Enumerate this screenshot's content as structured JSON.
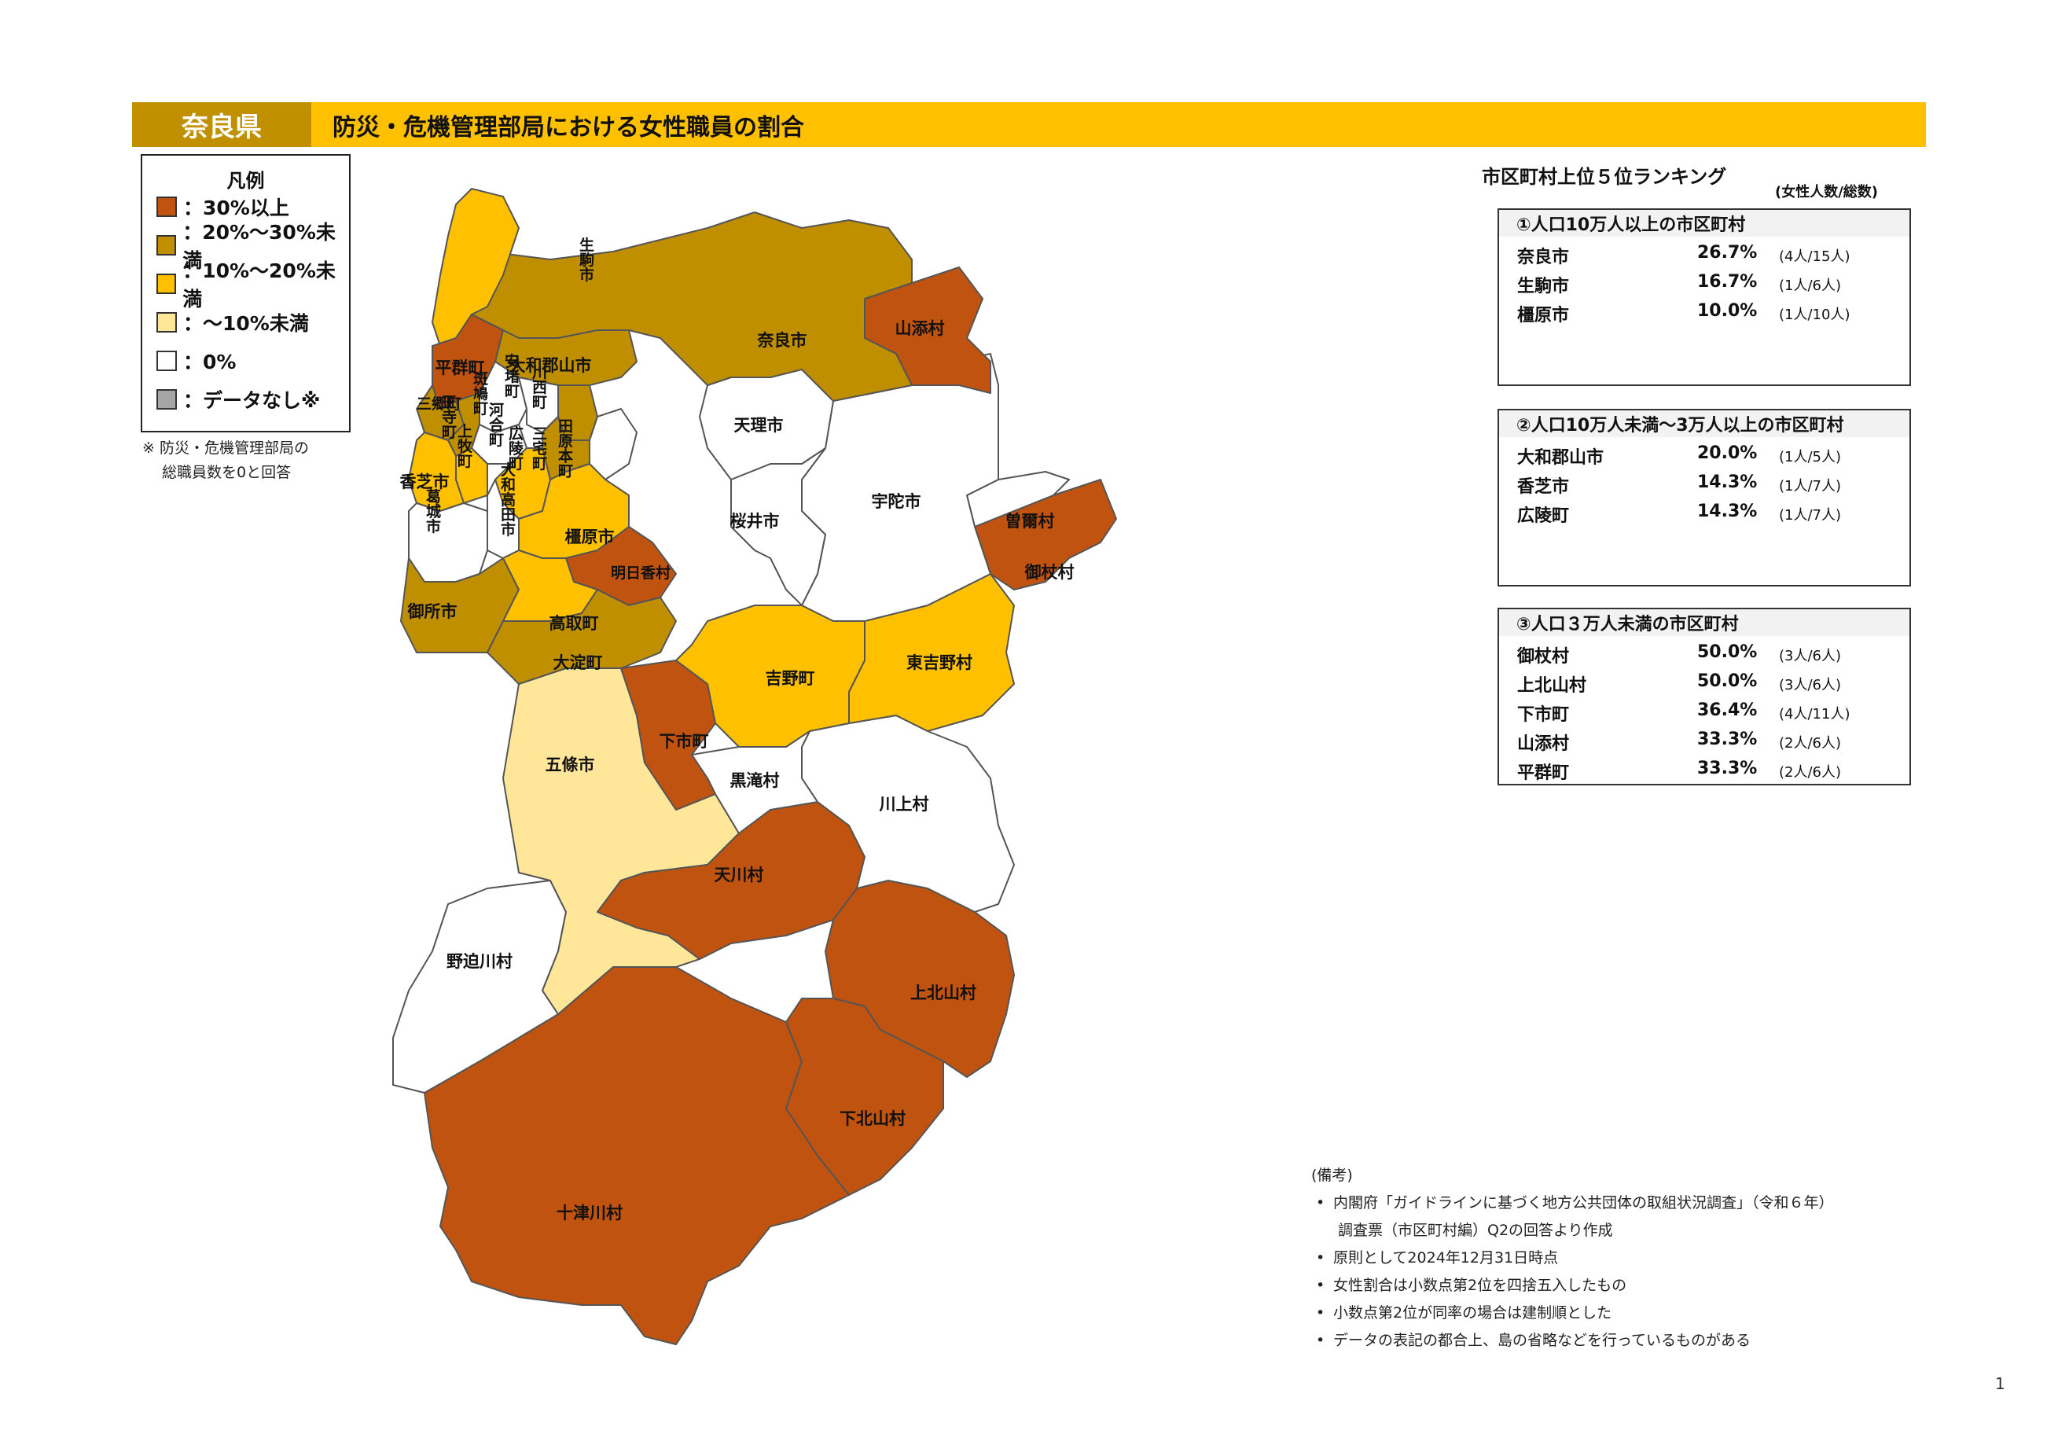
{
  "header": {
    "prefecture": "奈良県",
    "title": "防災・危機管理部局における女性職員の割合"
  },
  "colors": {
    "c30": "#C0530F",
    "c20": "#BF8F00",
    "c10": "#FFC000",
    "c0to10": "#FFE699",
    "c0": "#FFFFFF",
    "nodata": "#A6A6A6"
  },
  "legend": {
    "title": "凡例",
    "items": [
      {
        "label": "：30%以上",
        "color": "#C0530F"
      },
      {
        "label": "：20%～30%未満",
        "color": "#BF8F00"
      },
      {
        "label": "：10%～20%未満",
        "color": "#FFC000"
      },
      {
        "label": "：～10%未満",
        "color": "#FFE699"
      },
      {
        "label": "：0%",
        "color": "#FFFFFF"
      },
      {
        "label": "：データなし※",
        "color": "#A6A6A6"
      }
    ],
    "note_line1": "※ 防災・危機管理部局の",
    "note_line2": "総職員数を0と回答"
  },
  "map_labels": {
    "ikoma": "生駒市",
    "nara": "奈良市",
    "yamazoe": "山添村",
    "heguri": "平群町",
    "yamatokoriyama": "大和郡山市",
    "ikaruga": "斑鳩町",
    "ando": "安堵町",
    "kawanishi": "川西町",
    "sango": "三郷町",
    "oji": "王寺町",
    "kawai": "河合町",
    "kanmaki": "上牧町",
    "tenri": "天理市",
    "kashiba": "香芝市",
    "koryo": "広陵町",
    "miyake": "三宅町",
    "tawaramoto": "田原本町",
    "uda": "宇陀市",
    "soni": "曽爾村",
    "katsuragi": "葛城市",
    "oji_takada": "大和高田市",
    "sakurai": "桜井市",
    "kashihara": "橿原市",
    "mitsue": "御杖村",
    "asuka": "明日香村",
    "gose": "御所市",
    "takatori": "高取町",
    "oyodo": "大淀町",
    "yoshino": "吉野町",
    "higashiyoshino": "東吉野村",
    "gojo": "五條市",
    "shimoichi": "下市町",
    "kurotaki": "黒滝村",
    "kawakami": "川上村",
    "tenkawa": "天川村",
    "nosegawa": "野迫川村",
    "kamikitayama": "上北山村",
    "shimokitayama": "下北山村",
    "totsukawa": "十津川村"
  },
  "ranking": {
    "heading": "市区町村上位５位ランキング",
    "sub": "(女性人数/総数)",
    "groups": [
      {
        "title": "①人口10万人以上の市区町村",
        "rows": [
          {
            "name": "奈良市",
            "pct": "26.7%",
            "count": "(4人/15人)"
          },
          {
            "name": "生駒市",
            "pct": "16.7%",
            "count": "(1人/6人)"
          },
          {
            "name": "橿原市",
            "pct": "10.0%",
            "count": "(1人/10人)"
          }
        ]
      },
      {
        "title": "②人口10万人未満～3万人以上の市区町村",
        "rows": [
          {
            "name": "大和郡山市",
            "pct": "20.0%",
            "count": "(1人/5人)"
          },
          {
            "name": "香芝市",
            "pct": "14.3%",
            "count": "(1人/7人)"
          },
          {
            "name": "広陵町",
            "pct": "14.3%",
            "count": "(1人/7人)"
          }
        ]
      },
      {
        "title": "③人口３万人未満の市区町村",
        "rows": [
          {
            "name": "御杖村",
            "pct": "50.0%",
            "count": "(3人/6人)"
          },
          {
            "name": "上北山村",
            "pct": "50.0%",
            "count": "(3人/6人)"
          },
          {
            "name": "下市町",
            "pct": "36.4%",
            "count": "(4人/11人)"
          },
          {
            "name": "山添村",
            "pct": "33.3%",
            "count": "(2人/6人)"
          },
          {
            "name": "平群町",
            "pct": "33.3%",
            "count": "(2人/6人)"
          }
        ]
      }
    ]
  },
  "notes": {
    "head": "(備考)",
    "l1": "内閣府「ガイドラインに基づく地方公共団体の取組状況調査」（令和６年）",
    "l1b": "調査票（市区町村編）Q2の回答より作成",
    "l2": "原則として2024年12月31日時点",
    "l3": "女性割合は小数点第2位を四捨五入したもの",
    "l4": "小数点第2位が同率の場合は建制順とした",
    "l5": "データの表記の都合上、島の省略などを行っているものがある"
  },
  "page_number": "1"
}
